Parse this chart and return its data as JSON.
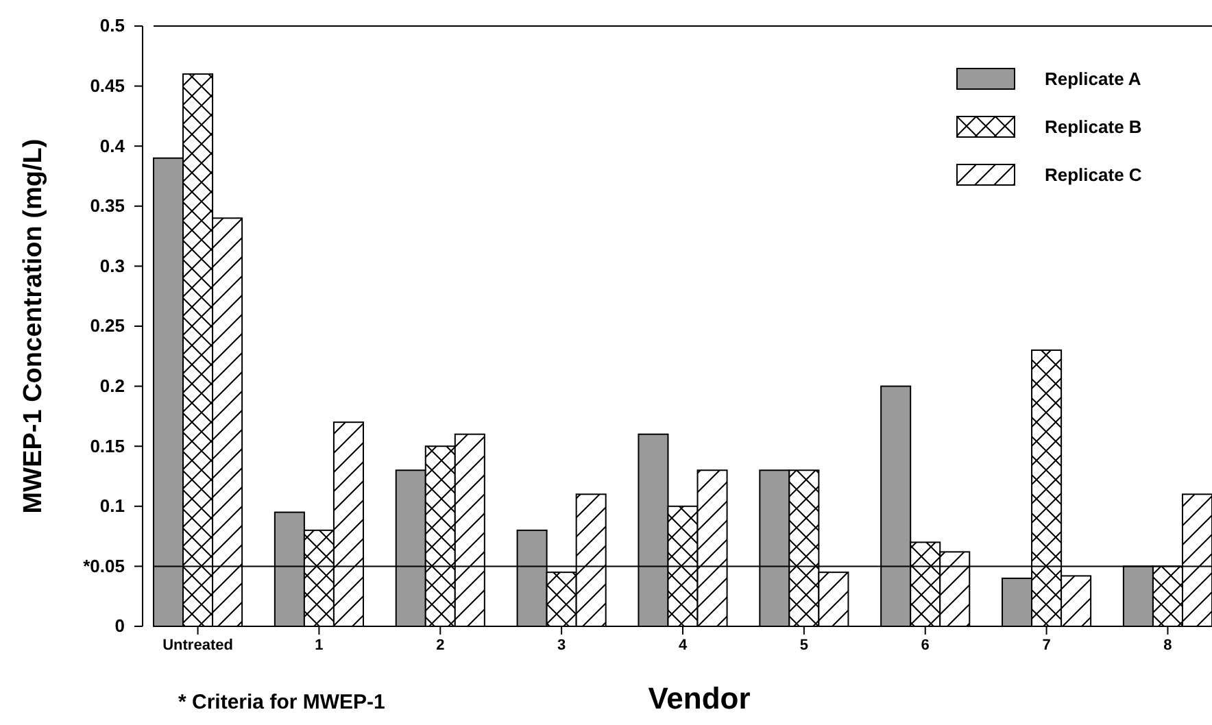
{
  "chart_data": {
    "type": "bar",
    "xlabel": "Vendor",
    "ylabel": "MWEP-1 Concentration (mg/L)",
    "categories": [
      "Untreated",
      "1",
      "2",
      "3",
      "4",
      "5",
      "6",
      "7",
      "8"
    ],
    "series": [
      {
        "name": "Replicate A",
        "color": "#9a9a9a",
        "values": [
          0.39,
          0.095,
          0.13,
          0.08,
          0.16,
          0.13,
          0.2,
          0.04,
          0.05
        ]
      },
      {
        "name": "Replicate B",
        "color": "#000000",
        "values": [
          0.46,
          0.08,
          0.15,
          0.045,
          0.1,
          0.13,
          0.07,
          0.23,
          0.05
        ]
      },
      {
        "name": "Replicate C",
        "color": "#000000",
        "values": [
          0.34,
          0.17,
          0.16,
          0.11,
          0.13,
          0.045,
          0.062,
          0.042,
          0.11
        ]
      }
    ],
    "ylim": [
      0,
      0.5
    ],
    "yticks": [
      0,
      {
        "value": 0.05,
        "label": "*0.05"
      },
      0.1,
      0.15,
      0.2,
      0.25,
      0.3,
      0.35,
      0.4,
      0.45,
      0.5
    ],
    "ref_lines": [
      {
        "axis": "y",
        "value": 0.05,
        "color": "#000000"
      }
    ],
    "annotations": [
      "* Criteria for MWEP-1"
    ],
    "legend": "top right",
    "grid": false
  }
}
